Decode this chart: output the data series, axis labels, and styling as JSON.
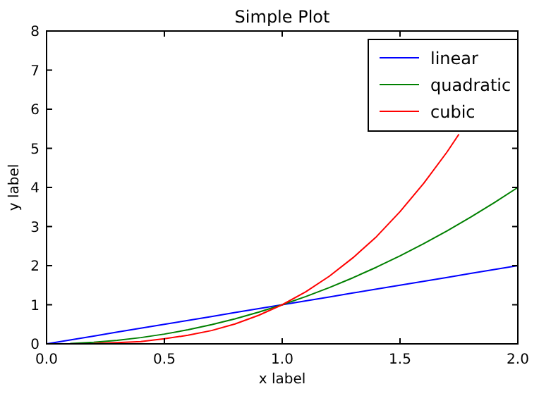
{
  "chart_data": {
    "type": "line",
    "title": "Simple Plot",
    "xlabel": "x label",
    "ylabel": "y label",
    "x": [
      0,
      0.1,
      0.2,
      0.3,
      0.4,
      0.5,
      0.6,
      0.7,
      0.8,
      0.9,
      1,
      1.1,
      1.2,
      1.3,
      1.4,
      1.5,
      1.6,
      1.7,
      1.8,
      1.9,
      2
    ],
    "series": [
      {
        "name": "linear",
        "color": "#0000ff",
        "values": [
          0,
          0.1,
          0.2,
          0.3,
          0.4,
          0.5,
          0.6,
          0.7,
          0.8,
          0.9,
          1,
          1.1,
          1.2,
          1.3,
          1.4,
          1.5,
          1.6,
          1.7,
          1.8,
          1.9,
          2
        ]
      },
      {
        "name": "quadratic",
        "color": "#008000",
        "values": [
          null,
          0.01,
          0.04,
          0.09,
          0.16,
          0.25,
          0.36,
          0.49,
          0.64,
          0.81,
          1,
          1.21,
          1.44,
          1.69,
          1.96,
          2.25,
          2.56,
          2.89,
          3.24,
          3.61,
          4
        ]
      },
      {
        "name": "cubic",
        "color": "#ff0000",
        "x": [
          0.2,
          0.3,
          0.4,
          0.5,
          0.6,
          0.7,
          0.8,
          0.9,
          1,
          1.1,
          1.2,
          1.3,
          1.4,
          1.5,
          1.6,
          1.7,
          1.75
        ],
        "values": [
          0.01,
          0.03,
          0.06,
          0.13,
          0.22,
          0.34,
          0.51,
          0.73,
          1,
          1.33,
          1.73,
          2.2,
          2.74,
          3.38,
          4.1,
          4.91,
          5.36
        ]
      }
    ],
    "xlim": [
      0,
      2
    ],
    "ylim": [
      0,
      8
    ],
    "xticks": [
      {
        "value": 0,
        "label": "0.0"
      },
      {
        "value": 0.5,
        "label": "0.5"
      },
      {
        "value": 1,
        "label": "1.0"
      },
      {
        "value": 1.5,
        "label": "1.5"
      },
      {
        "value": 2,
        "label": "2.0"
      }
    ],
    "yticks": [
      0,
      1,
      2,
      3,
      4,
      5,
      6,
      7,
      8
    ],
    "legend": "top right",
    "marker": "none",
    "line_style": "solid"
  }
}
